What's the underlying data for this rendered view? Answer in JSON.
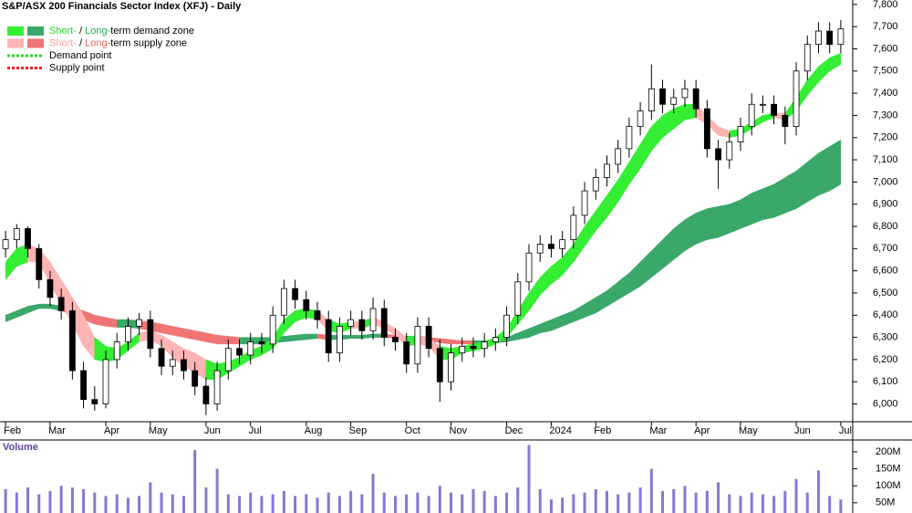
{
  "chart_data": {
    "type": "candlestick",
    "title": "S&P/ASX 200 Financials Sector Index (XFJ) - Daily",
    "categories": [
      "Feb",
      null,
      null,
      null,
      "Mar",
      null,
      null,
      null,
      null,
      "Apr",
      null,
      null,
      null,
      "May",
      null,
      null,
      null,
      null,
      "Jun",
      null,
      null,
      null,
      "Jul",
      null,
      null,
      null,
      null,
      "Aug",
      null,
      null,
      null,
      "Sep",
      null,
      null,
      null,
      null,
      "Oct",
      null,
      null,
      null,
      "Nov",
      null,
      null,
      null,
      null,
      "Dec",
      null,
      null,
      null,
      "2024",
      null,
      null,
      null,
      "Feb",
      null,
      null,
      null,
      null,
      "Mar",
      null,
      null,
      null,
      "Apr",
      null,
      null,
      null,
      "May",
      null,
      null,
      null,
      null,
      "Jun",
      null,
      null,
      null,
      "Jul"
    ],
    "open": [
      6700,
      6740,
      6790,
      6700,
      6560,
      6480,
      6420,
      6150,
      6020,
      6000,
      6200,
      6280,
      6350,
      6380,
      6250,
      6170,
      6200,
      6150,
      6080,
      6000,
      6150,
      6250,
      6220,
      6280,
      6270,
      6400,
      6520,
      6470,
      6420,
      6380,
      6230,
      6350,
      6380,
      6330,
      6430,
      6300,
      6280,
      6180,
      6350,
      6250,
      6100,
      6230,
      6260,
      6250,
      6280,
      6300,
      6400,
      6550,
      6680,
      6720,
      6700,
      6740,
      6850,
      6960,
      7020,
      7080,
      7150,
      7250,
      7320,
      7420,
      7350,
      7380,
      7420,
      7330,
      7150,
      7100,
      7180,
      7250,
      7350,
      7350,
      7300,
      7250,
      7500,
      7620,
      7680,
      7620
    ],
    "high": [
      6780,
      6810,
      6800,
      6720,
      6600,
      6520,
      6460,
      6190,
      6080,
      6240,
      6320,
      6390,
      6410,
      6420,
      6290,
      6240,
      6240,
      6190,
      6120,
      6190,
      6290,
      6290,
      6320,
      6320,
      6440,
      6560,
      6560,
      6510,
      6460,
      6420,
      6390,
      6420,
      6420,
      6480,
      6470,
      6340,
      6320,
      6390,
      6390,
      6290,
      6270,
      6300,
      6300,
      6320,
      6340,
      6440,
      6590,
      6720,
      6760,
      6760,
      6780,
      6890,
      7000,
      7060,
      7120,
      7190,
      7290,
      7360,
      7530,
      7460,
      7420,
      7460,
      7460,
      7370,
      7190,
      7220,
      7290,
      7400,
      7390,
      7390,
      7340,
      7540,
      7660,
      7720,
      7720,
      7730
    ],
    "low": [
      6660,
      6700,
      6660,
      6520,
      6440,
      6380,
      6110,
      5980,
      5970,
      5980,
      6160,
      6240,
      6310,
      6210,
      6130,
      6130,
      6110,
      6040,
      5950,
      5970,
      6110,
      6180,
      6180,
      6230,
      6230,
      6360,
      6430,
      6380,
      6340,
      6190,
      6190,
      6310,
      6290,
      6290,
      6260,
      6240,
      6140,
      6140,
      6210,
      6010,
      6060,
      6190,
      6210,
      6210,
      6240,
      6260,
      6360,
      6510,
      6640,
      6660,
      6660,
      6700,
      6810,
      6920,
      6980,
      7040,
      7110,
      7210,
      7280,
      7310,
      7310,
      7340,
      7290,
      7110,
      6970,
      7060,
      7140,
      7210,
      7310,
      7260,
      7170,
      7210,
      7460,
      7580,
      7580,
      7580
    ],
    "close": [
      6740,
      6790,
      6700,
      6560,
      6480,
      6420,
      6150,
      6020,
      6000,
      6200,
      6280,
      6350,
      6380,
      6250,
      6170,
      6200,
      6150,
      6080,
      6000,
      6150,
      6250,
      6220,
      6280,
      6270,
      6400,
      6520,
      6470,
      6420,
      6380,
      6230,
      6350,
      6380,
      6330,
      6430,
      6300,
      6280,
      6180,
      6350,
      6250,
      6100,
      6230,
      6260,
      6250,
      6280,
      6300,
      6400,
      6550,
      6680,
      6720,
      6700,
      6740,
      6850,
      6960,
      7020,
      7080,
      7150,
      7250,
      7320,
      7420,
      7350,
      7380,
      7420,
      7330,
      7150,
      7100,
      7180,
      7250,
      7350,
      7350,
      7300,
      7250,
      7500,
      7620,
      7680,
      7620,
      7690
    ],
    "ylim": [
      5920,
      7820
    ],
    "yticks": [
      {
        "value": 6000,
        "label": "6,000"
      },
      {
        "value": 6100,
        "label": "6,100"
      },
      {
        "value": 6200,
        "label": "6,200"
      },
      {
        "value": 6300,
        "label": "6,300"
      },
      {
        "value": 6400,
        "label": "6,400"
      },
      {
        "value": 6500,
        "label": "6,500"
      },
      {
        "value": 6600,
        "label": "6,600"
      },
      {
        "value": 6700,
        "label": "6,700"
      },
      {
        "value": 6800,
        "label": "6,800"
      },
      {
        "value": 6900,
        "label": "6,900"
      },
      {
        "value": 7000,
        "label": "7,000"
      },
      {
        "value": 7100,
        "label": "7,100"
      },
      {
        "value": 7200,
        "label": "7,200"
      },
      {
        "value": 7300,
        "label": "7,300"
      },
      {
        "value": 7400,
        "label": "7,400"
      },
      {
        "value": 7500,
        "label": "7,500"
      },
      {
        "value": 7600,
        "label": "7,600"
      },
      {
        "value": 7700,
        "label": "7,700"
      },
      {
        "value": 7800,
        "label": "7,800"
      }
    ],
    "zones": [
      {
        "upper": [
          6400,
          6420,
          6440,
          6450,
          6450,
          6440,
          6430,
          6420,
          6400,
          6390,
          6380,
          6380,
          6375,
          6370,
          6360,
          6350,
          6340,
          6330,
          6320,
          6310,
          6305,
          6300,
          6300,
          6300,
          6300,
          6305,
          6310,
          6315,
          6315,
          6310,
          6310,
          6310,
          6310,
          6315,
          6315,
          6310,
          6305,
          6305,
          6300,
          6295,
          6290,
          6285,
          6285,
          6285,
          6290,
          6300,
          6320,
          6340,
          6360,
          6380,
          6400,
          6420,
          6450,
          6480,
          6510,
          6550,
          6590,
          6640,
          6690,
          6740,
          6790,
          6830,
          6860,
          6880,
          6890,
          6900,
          6920,
          6950,
          6970,
          6990,
          7020,
          7050,
          7090,
          7130,
          7160,
          7190
        ],
        "lower": [
          6370,
          6390,
          6410,
          6430,
          6430,
          6420,
          6400,
          6380,
          6360,
          6350,
          6345,
          6345,
          6340,
          6330,
          6320,
          6310,
          6300,
          6290,
          6280,
          6270,
          6270,
          6270,
          6270,
          6270,
          6275,
          6280,
          6285,
          6290,
          6295,
          6290,
          6290,
          6295,
          6295,
          6300,
          6300,
          6295,
          6290,
          6290,
          6285,
          6275,
          6270,
          6270,
          6270,
          6270,
          6275,
          6280,
          6290,
          6300,
          6320,
          6330,
          6350,
          6370,
          6390,
          6410,
          6440,
          6470,
          6500,
          6530,
          6570,
          6610,
          6650,
          6690,
          6720,
          6740,
          6750,
          6770,
          6790,
          6810,
          6830,
          6840,
          6860,
          6880,
          6910,
          6940,
          6960,
          6990
        ],
        "demand_color": "#3aa86a",
        "supply_color": "#f07474"
      },
      {
        "upper": [
          6640,
          6700,
          6720,
          6700,
          6640,
          6560,
          6480,
          6400,
          6300,
          6260,
          6250,
          6280,
          6320,
          6330,
          6310,
          6280,
          6250,
          6230,
          6200,
          6180,
          6190,
          6210,
          6240,
          6260,
          6300,
          6380,
          6420,
          6430,
          6420,
          6380,
          6360,
          6370,
          6370,
          6390,
          6370,
          6340,
          6300,
          6310,
          6300,
          6260,
          6250,
          6260,
          6270,
          6280,
          6300,
          6340,
          6420,
          6500,
          6570,
          6620,
          6660,
          6720,
          6800,
          6870,
          6940,
          7010,
          7090,
          7170,
          7250,
          7300,
          7330,
          7350,
          7350,
          7300,
          7250,
          7230,
          7240,
          7270,
          7300,
          7310,
          7310,
          7380,
          7460,
          7520,
          7560,
          7580
        ],
        "lower": [
          6560,
          6620,
          6640,
          6640,
          6540,
          6450,
          6360,
          6260,
          6200,
          6190,
          6200,
          6240,
          6280,
          6290,
          6260,
          6210,
          6170,
          6140,
          6110,
          6110,
          6140,
          6170,
          6200,
          6220,
          6250,
          6320,
          6370,
          6390,
          6380,
          6330,
          6320,
          6340,
          6340,
          6360,
          6340,
          6310,
          6260,
          6270,
          6260,
          6200,
          6200,
          6230,
          6240,
          6250,
          6270,
          6300,
          6360,
          6420,
          6490,
          6540,
          6580,
          6640,
          6710,
          6780,
          6840,
          6910,
          6990,
          7060,
          7140,
          7200,
          7240,
          7280,
          7290,
          7260,
          7210,
          7200,
          7210,
          7240,
          7270,
          7290,
          7280,
          7320,
          7390,
          7450,
          7500,
          7530
        ],
        "demand_color": "#33ee33",
        "supply_color": "#ffb4b4"
      }
    ],
    "legend": [
      {
        "parts": [
          {
            "text": "Short-",
            "color": "#22dd22"
          },
          {
            "text": " / ",
            "color": "#000000"
          },
          {
            "text": "Long-",
            "color": "#22aa55"
          },
          {
            "text": "term demand zone",
            "color": "#000000"
          }
        ],
        "swatches": [
          "#33ee33",
          "#3aa86a"
        ]
      },
      {
        "parts": [
          {
            "text": "Short-",
            "color": "#ffa0a0"
          },
          {
            "text": " / ",
            "color": "#000000"
          },
          {
            "text": "Long-",
            "color": "#ee6060"
          },
          {
            "text": "term supply zone",
            "color": "#000000"
          }
        ],
        "swatches": [
          "#ffb4b4",
          "#f07474"
        ]
      },
      {
        "parts": [
          {
            "text": "Demand point",
            "color": "#000000"
          }
        ],
        "line_color": "#22dd22"
      },
      {
        "parts": [
          {
            "text": "Supply point",
            "color": "#000000"
          }
        ],
        "line_color": "#ee2222"
      }
    ],
    "volume": {
      "label": "Volume",
      "color": "#8677d6",
      "values": [
        90000000,
        80000000,
        95000000,
        75000000,
        85000000,
        100000000,
        95000000,
        90000000,
        80000000,
        70000000,
        75000000,
        65000000,
        70000000,
        110000000,
        80000000,
        75000000,
        70000000,
        205000000,
        95000000,
        150000000,
        75000000,
        70000000,
        80000000,
        70000000,
        75000000,
        85000000,
        70000000,
        75000000,
        65000000,
        80000000,
        70000000,
        85000000,
        75000000,
        135000000,
        80000000,
        70000000,
        75000000,
        80000000,
        70000000,
        100000000,
        80000000,
        75000000,
        90000000,
        85000000,
        70000000,
        80000000,
        95000000,
        220000000,
        90000000,
        60000000,
        65000000,
        75000000,
        80000000,
        90000000,
        85000000,
        75000000,
        80000000,
        95000000,
        150000000,
        85000000,
        90000000,
        100000000,
        80000000,
        85000000,
        110000000,
        75000000,
        70000000,
        80000000,
        75000000,
        70000000,
        85000000,
        120000000,
        80000000,
        145000000,
        70000000,
        60000000
      ],
      "ylim": [
        20000000,
        232000000
      ],
      "yticks": [
        {
          "value": 50000000,
          "label": "50M"
        },
        {
          "value": 100000000,
          "label": "100M"
        },
        {
          "value": 150000000,
          "label": "150M"
        },
        {
          "value": 200000000,
          "label": "200M"
        }
      ]
    }
  }
}
